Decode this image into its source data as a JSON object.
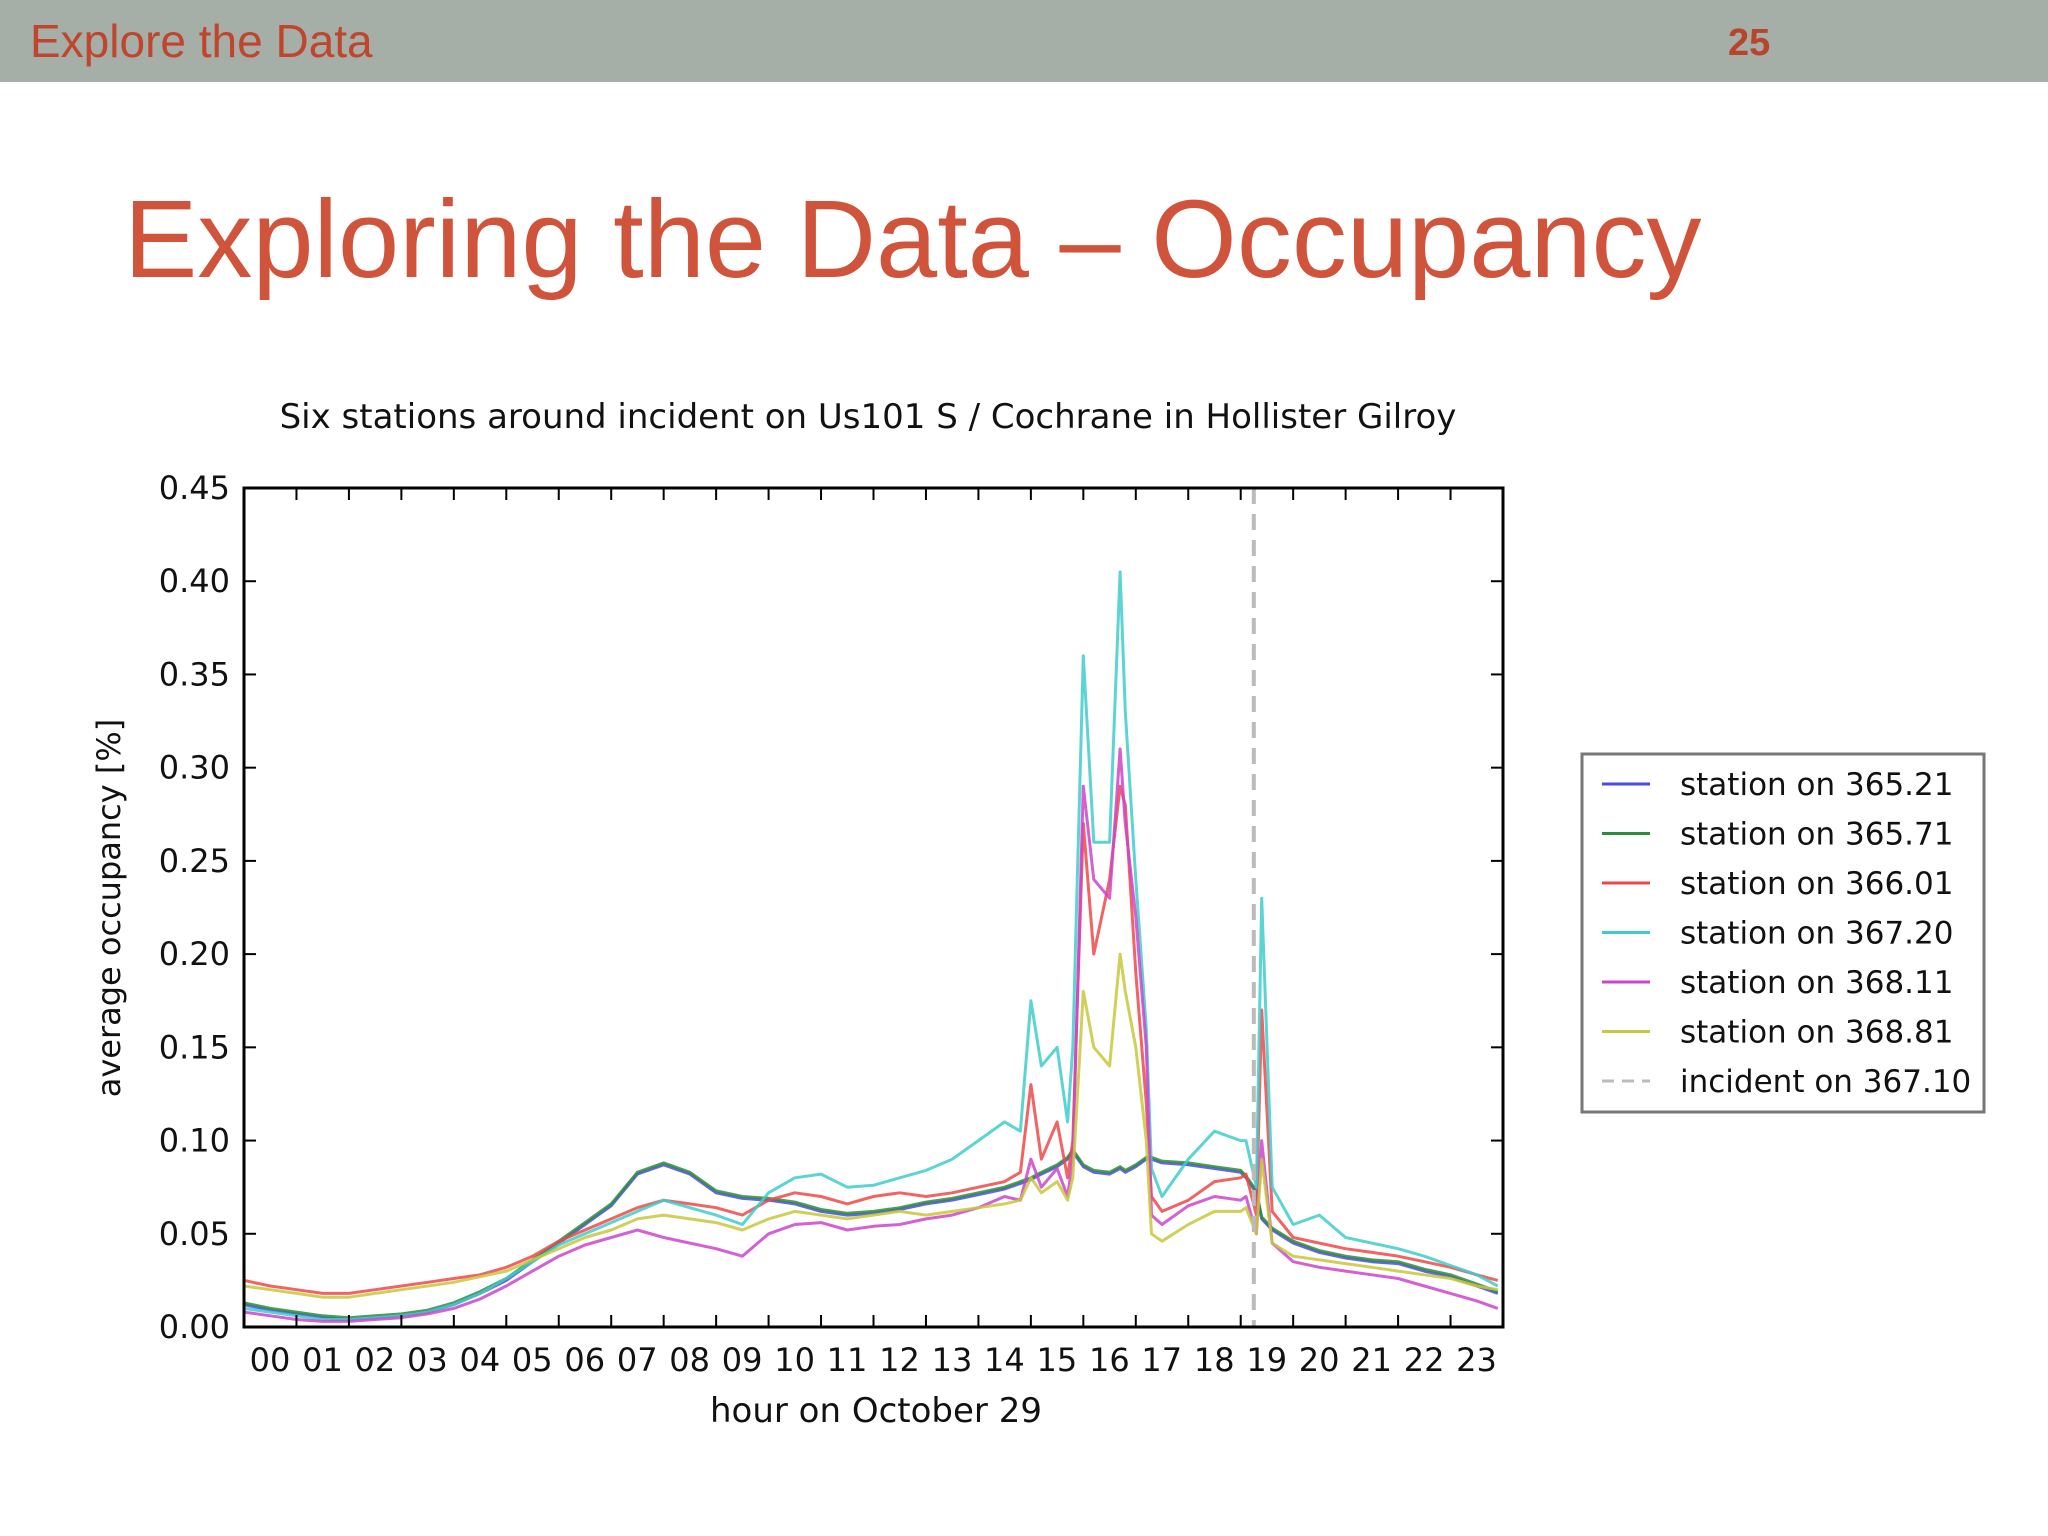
{
  "header": {
    "section": "Explore the Data",
    "page_number": "25"
  },
  "slide": {
    "title": "Exploring the Data – Occupancy"
  },
  "colors": {
    "topbar": "#a5aea7",
    "accent": "#d0543b"
  },
  "chart_data": {
    "type": "line",
    "title": "Six stations around incident on Us101 S / Cochrane in Hollister Gilroy",
    "xlabel": "hour on October 29",
    "ylabel": "average occupancy [%]",
    "xlim": [
      0,
      24
    ],
    "ylim": [
      0,
      0.45
    ],
    "xticks": [
      "00",
      "01",
      "02",
      "03",
      "04",
      "05",
      "06",
      "07",
      "08",
      "09",
      "10",
      "11",
      "12",
      "13",
      "14",
      "15",
      "16",
      "17",
      "18",
      "19",
      "20",
      "21",
      "22",
      "23"
    ],
    "yticks": [
      "0.00",
      "0.05",
      "0.10",
      "0.15",
      "0.20",
      "0.25",
      "0.30",
      "0.35",
      "0.40",
      "0.45"
    ],
    "grid": false,
    "legend_position": "right",
    "x": [
      0,
      0.5,
      1,
      1.5,
      2,
      2.5,
      3,
      3.5,
      4,
      4.5,
      5,
      5.5,
      6,
      6.5,
      7,
      7.5,
      8,
      8.5,
      9,
      9.5,
      10,
      10.5,
      11,
      11.5,
      12,
      12.5,
      13,
      13.5,
      14,
      14.5,
      14.8,
      15,
      15.2,
      15.5,
      15.7,
      15.8,
      16,
      16.2,
      16.5,
      16.7,
      16.8,
      17,
      17.2,
      17.3,
      17.5,
      18,
      18.5,
      19,
      19.1,
      19.3,
      19.4,
      19.6,
      20,
      20.5,
      21,
      21.5,
      22,
      22.5,
      23,
      23.5,
      23.9
    ],
    "series": [
      {
        "name": "station on 365.21",
        "color": "#4a4ae8",
        "values": [
          0.012,
          0.009,
          0.007,
          0.005,
          0.004,
          0.005,
          0.006,
          0.008,
          0.012,
          0.018,
          0.025,
          0.035,
          0.045,
          0.055,
          0.065,
          0.082,
          0.087,
          0.082,
          0.072,
          0.069,
          0.068,
          0.066,
          0.062,
          0.06,
          0.061,
          0.063,
          0.066,
          0.068,
          0.071,
          0.074,
          0.077,
          0.079,
          0.082,
          0.086,
          0.09,
          0.094,
          0.086,
          0.083,
          0.082,
          0.085,
          0.083,
          0.086,
          0.09,
          0.09,
          0.088,
          0.087,
          0.085,
          0.083,
          0.08,
          0.072,
          0.058,
          0.052,
          0.045,
          0.04,
          0.037,
          0.035,
          0.034,
          0.03,
          0.027,
          0.022,
          0.018
        ]
      },
      {
        "name": "station on 365.71",
        "color": "#2e8b3e",
        "values": [
          0.013,
          0.01,
          0.008,
          0.006,
          0.005,
          0.006,
          0.007,
          0.009,
          0.013,
          0.019,
          0.026,
          0.036,
          0.046,
          0.056,
          0.066,
          0.083,
          0.088,
          0.083,
          0.073,
          0.07,
          0.069,
          0.067,
          0.063,
          0.061,
          0.062,
          0.064,
          0.067,
          0.069,
          0.072,
          0.075,
          0.078,
          0.08,
          0.083,
          0.087,
          0.091,
          0.095,
          0.087,
          0.084,
          0.083,
          0.086,
          0.084,
          0.087,
          0.091,
          0.091,
          0.089,
          0.088,
          0.086,
          0.084,
          0.081,
          0.073,
          0.059,
          0.053,
          0.046,
          0.041,
          0.038,
          0.036,
          0.035,
          0.031,
          0.028,
          0.023,
          0.019
        ]
      },
      {
        "name": "station on 366.01",
        "color": "#f04848",
        "values": [
          0.025,
          0.022,
          0.02,
          0.018,
          0.018,
          0.02,
          0.022,
          0.024,
          0.026,
          0.028,
          0.032,
          0.038,
          0.046,
          0.052,
          0.058,
          0.064,
          0.068,
          0.066,
          0.064,
          0.06,
          0.068,
          0.072,
          0.07,
          0.066,
          0.07,
          0.072,
          0.07,
          0.072,
          0.075,
          0.078,
          0.083,
          0.13,
          0.09,
          0.11,
          0.08,
          0.1,
          0.27,
          0.2,
          0.24,
          0.29,
          0.28,
          0.19,
          0.12,
          0.07,
          0.062,
          0.068,
          0.078,
          0.08,
          0.082,
          0.06,
          0.17,
          0.062,
          0.048,
          0.045,
          0.042,
          0.04,
          0.038,
          0.035,
          0.032,
          0.028,
          0.025
        ]
      },
      {
        "name": "station on 367.20",
        "color": "#40cccc",
        "values": [
          0.01,
          0.008,
          0.006,
          0.004,
          0.004,
          0.005,
          0.006,
          0.008,
          0.012,
          0.018,
          0.026,
          0.035,
          0.044,
          0.05,
          0.056,
          0.062,
          0.068,
          0.064,
          0.06,
          0.055,
          0.072,
          0.08,
          0.082,
          0.075,
          0.076,
          0.08,
          0.084,
          0.09,
          0.1,
          0.11,
          0.105,
          0.175,
          0.14,
          0.15,
          0.11,
          0.15,
          0.36,
          0.26,
          0.26,
          0.405,
          0.33,
          0.24,
          0.16,
          0.085,
          0.07,
          0.09,
          0.105,
          0.1,
          0.1,
          0.075,
          0.23,
          0.075,
          0.055,
          0.06,
          0.048,
          0.045,
          0.042,
          0.038,
          0.033,
          0.028,
          0.022
        ]
      },
      {
        "name": "station on 368.11",
        "color": "#cc44cc",
        "values": [
          0.008,
          0.006,
          0.004,
          0.003,
          0.003,
          0.004,
          0.005,
          0.007,
          0.01,
          0.015,
          0.022,
          0.03,
          0.038,
          0.044,
          0.048,
          0.052,
          0.048,
          0.045,
          0.042,
          0.038,
          0.05,
          0.055,
          0.056,
          0.052,
          0.054,
          0.055,
          0.058,
          0.06,
          0.064,
          0.07,
          0.068,
          0.09,
          0.075,
          0.085,
          0.07,
          0.09,
          0.29,
          0.24,
          0.23,
          0.31,
          0.27,
          0.22,
          0.15,
          0.06,
          0.055,
          0.065,
          0.07,
          0.068,
          0.07,
          0.05,
          0.1,
          0.045,
          0.035,
          0.032,
          0.03,
          0.028,
          0.026,
          0.022,
          0.018,
          0.014,
          0.01
        ]
      },
      {
        "name": "station on 368.81",
        "color": "#c8c83c",
        "values": [
          0.022,
          0.02,
          0.018,
          0.016,
          0.016,
          0.018,
          0.02,
          0.022,
          0.024,
          0.027,
          0.03,
          0.036,
          0.042,
          0.048,
          0.052,
          0.058,
          0.06,
          0.058,
          0.056,
          0.052,
          0.058,
          0.062,
          0.06,
          0.058,
          0.06,
          0.062,
          0.06,
          0.062,
          0.064,
          0.066,
          0.068,
          0.08,
          0.072,
          0.078,
          0.068,
          0.08,
          0.18,
          0.15,
          0.14,
          0.2,
          0.18,
          0.15,
          0.1,
          0.05,
          0.046,
          0.055,
          0.062,
          0.062,
          0.064,
          0.05,
          0.09,
          0.045,
          0.038,
          0.036,
          0.034,
          0.032,
          0.03,
          0.028,
          0.026,
          0.022,
          0.02
        ]
      }
    ],
    "incident": {
      "name": "incident on 367.10",
      "x": 19.25,
      "color": "#bbbbbb"
    }
  }
}
